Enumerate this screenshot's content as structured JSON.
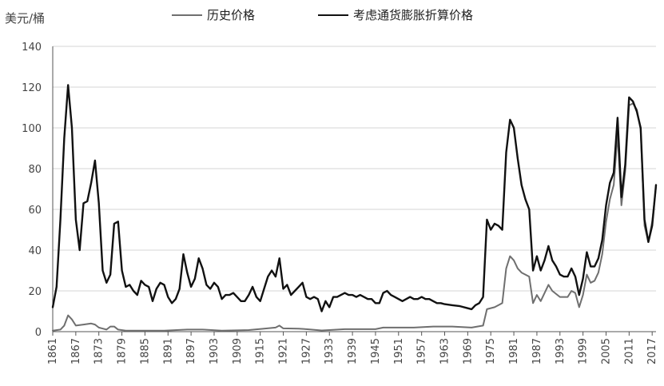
{
  "chart_data": {
    "type": "line",
    "ylabel": "美元/桶",
    "ylim": [
      0,
      140
    ],
    "yticks": [
      0,
      20,
      40,
      60,
      80,
      100,
      120,
      140
    ],
    "xlim": [
      1861,
      2018
    ],
    "xticks": [
      1861,
      1867,
      1873,
      1879,
      1885,
      1891,
      1897,
      1903,
      1909,
      1915,
      1921,
      1927,
      1933,
      1939,
      1945,
      1951,
      1957,
      1963,
      1969,
      1975,
      1981,
      1987,
      1993,
      1999,
      2005,
      2011,
      2017
    ],
    "grid": "horizontal",
    "legend_position": "top",
    "series": [
      {
        "name": "历史价格",
        "color": "#6f6f6f",
        "points": [
          [
            1861,
            0.5
          ],
          [
            1863,
            1
          ],
          [
            1864,
            3
          ],
          [
            1865,
            8
          ],
          [
            1866,
            6
          ],
          [
            1867,
            3
          ],
          [
            1869,
            3.5
          ],
          [
            1871,
            4
          ],
          [
            1872,
            3.5
          ],
          [
            1873,
            2
          ],
          [
            1875,
            1
          ],
          [
            1876,
            2.5
          ],
          [
            1877,
            2.5
          ],
          [
            1878,
            1
          ],
          [
            1880,
            0.5
          ],
          [
            1890,
            0.5
          ],
          [
            1896,
            1
          ],
          [
            1900,
            1
          ],
          [
            1905,
            0.5
          ],
          [
            1912,
            0.8
          ],
          [
            1916,
            1.5
          ],
          [
            1919,
            2
          ],
          [
            1920,
            3
          ],
          [
            1921,
            1.6
          ],
          [
            1925,
            1.5
          ],
          [
            1927,
            1.2
          ],
          [
            1931,
            0.6
          ],
          [
            1933,
            0.8
          ],
          [
            1937,
            1.2
          ],
          [
            1941,
            1.2
          ],
          [
            1945,
            1.2
          ],
          [
            1947,
            2
          ],
          [
            1950,
            2
          ],
          [
            1955,
            2
          ],
          [
            1960,
            2.5
          ],
          [
            1965,
            2.5
          ],
          [
            1970,
            2
          ],
          [
            1973,
            3
          ],
          [
            1974,
            11
          ],
          [
            1976,
            12
          ],
          [
            1978,
            14
          ],
          [
            1979,
            31
          ],
          [
            1980,
            37
          ],
          [
            1981,
            35
          ],
          [
            1982,
            31
          ],
          [
            1983,
            29
          ],
          [
            1985,
            27
          ],
          [
            1986,
            14
          ],
          [
            1987,
            18
          ],
          [
            1988,
            15
          ],
          [
            1990,
            23
          ],
          [
            1991,
            20
          ],
          [
            1993,
            17
          ],
          [
            1995,
            17
          ],
          [
            1996,
            20
          ],
          [
            1997,
            19
          ],
          [
            1998,
            12
          ],
          [
            1999,
            18
          ],
          [
            2000,
            28
          ],
          [
            2001,
            24
          ],
          [
            2002,
            25
          ],
          [
            2003,
            29
          ],
          [
            2004,
            38
          ],
          [
            2005,
            54
          ],
          [
            2006,
            65
          ],
          [
            2007,
            72
          ],
          [
            2008,
            97
          ],
          [
            2009,
            62
          ],
          [
            2010,
            79
          ],
          [
            2011,
            111
          ],
          [
            2012,
            112
          ],
          [
            2013,
            109
          ],
          [
            2014,
            99
          ],
          [
            2015,
            52
          ],
          [
            2016,
            44
          ],
          [
            2017,
            54
          ],
          [
            2018,
            71
          ]
        ]
      },
      {
        "name": "考虑通货膨胀折算价格",
        "color": "#111111",
        "points": [
          [
            1861,
            12
          ],
          [
            1862,
            22
          ],
          [
            1863,
            55
          ],
          [
            1864,
            95
          ],
          [
            1865,
            121
          ],
          [
            1866,
            100
          ],
          [
            1867,
            55
          ],
          [
            1868,
            40
          ],
          [
            1869,
            63
          ],
          [
            1870,
            64
          ],
          [
            1871,
            73
          ],
          [
            1872,
            84
          ],
          [
            1873,
            63
          ],
          [
            1874,
            30
          ],
          [
            1875,
            24
          ],
          [
            1876,
            28
          ],
          [
            1877,
            53
          ],
          [
            1878,
            54
          ],
          [
            1879,
            30
          ],
          [
            1880,
            22
          ],
          [
            1881,
            23
          ],
          [
            1882,
            20
          ],
          [
            1883,
            18
          ],
          [
            1884,
            25
          ],
          [
            1885,
            23
          ],
          [
            1886,
            22
          ],
          [
            1887,
            15
          ],
          [
            1888,
            21
          ],
          [
            1889,
            24
          ],
          [
            1890,
            23
          ],
          [
            1891,
            17
          ],
          [
            1892,
            14
          ],
          [
            1893,
            16
          ],
          [
            1894,
            21
          ],
          [
            1895,
            38
          ],
          [
            1896,
            29
          ],
          [
            1897,
            22
          ],
          [
            1898,
            26
          ],
          [
            1899,
            36
          ],
          [
            1900,
            31
          ],
          [
            1901,
            23
          ],
          [
            1902,
            21
          ],
          [
            1903,
            24
          ],
          [
            1904,
            22
          ],
          [
            1905,
            16
          ],
          [
            1906,
            18
          ],
          [
            1907,
            18
          ],
          [
            1908,
            19
          ],
          [
            1910,
            15
          ],
          [
            1911,
            15
          ],
          [
            1912,
            18
          ],
          [
            1913,
            22
          ],
          [
            1914,
            17
          ],
          [
            1915,
            15
          ],
          [
            1916,
            21
          ],
          [
            1917,
            27
          ],
          [
            1918,
            30
          ],
          [
            1919,
            27
          ],
          [
            1920,
            36
          ],
          [
            1921,
            21
          ],
          [
            1922,
            23
          ],
          [
            1923,
            18
          ],
          [
            1924,
            20
          ],
          [
            1925,
            22
          ],
          [
            1926,
            24
          ],
          [
            1927,
            17
          ],
          [
            1928,
            16
          ],
          [
            1929,
            17
          ],
          [
            1930,
            16
          ],
          [
            1931,
            10
          ],
          [
            1932,
            15
          ],
          [
            1933,
            12
          ],
          [
            1934,
            17
          ],
          [
            1935,
            17
          ],
          [
            1936,
            18
          ],
          [
            1937,
            19
          ],
          [
            1938,
            18
          ],
          [
            1939,
            18
          ],
          [
            1940,
            17
          ],
          [
            1941,
            18
          ],
          [
            1942,
            17
          ],
          [
            1943,
            16
          ],
          [
            1944,
            16
          ],
          [
            1945,
            14
          ],
          [
            1946,
            14
          ],
          [
            1947,
            19
          ],
          [
            1948,
            20
          ],
          [
            1949,
            18
          ],
          [
            1950,
            17
          ],
          [
            1951,
            16
          ],
          [
            1952,
            15
          ],
          [
            1953,
            16
          ],
          [
            1954,
            17
          ],
          [
            1955,
            16
          ],
          [
            1956,
            16
          ],
          [
            1957,
            17
          ],
          [
            1958,
            16
          ],
          [
            1959,
            16
          ],
          [
            1960,
            15
          ],
          [
            1961,
            14
          ],
          [
            1962,
            14
          ],
          [
            1963,
            13.5
          ],
          [
            1965,
            13
          ],
          [
            1967,
            12.5
          ],
          [
            1969,
            11.5
          ],
          [
            1970,
            11
          ],
          [
            1971,
            13
          ],
          [
            1972,
            14
          ],
          [
            1973,
            17
          ],
          [
            1974,
            55
          ],
          [
            1975,
            50
          ],
          [
            1976,
            53
          ],
          [
            1977,
            52
          ],
          [
            1978,
            50
          ],
          [
            1979,
            88
          ],
          [
            1980,
            104
          ],
          [
            1981,
            100
          ],
          [
            1982,
            85
          ],
          [
            1983,
            72
          ],
          [
            1984,
            65
          ],
          [
            1985,
            60
          ],
          [
            1986,
            30
          ],
          [
            1987,
            37
          ],
          [
            1988,
            30
          ],
          [
            1989,
            35
          ],
          [
            1990,
            42
          ],
          [
            1991,
            35
          ],
          [
            1992,
            32
          ],
          [
            1993,
            28
          ],
          [
            1994,
            27
          ],
          [
            1995,
            27
          ],
          [
            1996,
            31
          ],
          [
            1997,
            27
          ],
          [
            1998,
            18
          ],
          [
            1999,
            26
          ],
          [
            2000,
            39
          ],
          [
            2001,
            32
          ],
          [
            2002,
            32
          ],
          [
            2003,
            36
          ],
          [
            2004,
            45
          ],
          [
            2005,
            62
          ],
          [
            2006,
            73
          ],
          [
            2007,
            78
          ],
          [
            2008,
            105
          ],
          [
            2009,
            66
          ],
          [
            2010,
            82
          ],
          [
            2011,
            115
          ],
          [
            2012,
            113
          ],
          [
            2013,
            108
          ],
          [
            2014,
            100
          ],
          [
            2015,
            55
          ],
          [
            2016,
            44
          ],
          [
            2017,
            52
          ],
          [
            2018,
            72
          ]
        ]
      }
    ]
  }
}
